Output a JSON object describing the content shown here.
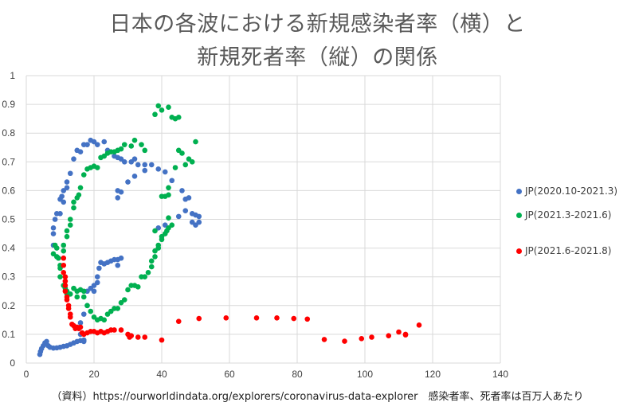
{
  "chart_data": {
    "type": "scatter",
    "title_lines": [
      "日本の各波における新規感染者率（横）と",
      "新規死者率（縦）の関係"
    ],
    "xlabel": "",
    "ylabel": "",
    "xlim": [
      0,
      140
    ],
    "ylim": [
      0,
      1
    ],
    "xticks": [
      "0",
      "20",
      "40",
      "60",
      "80",
      "100",
      "120",
      "140"
    ],
    "yticks": [
      "0",
      "0.1",
      "0.2",
      "0.3",
      "0.4",
      "0.5",
      "0.6",
      "0.7",
      "0.8",
      "0.9",
      "1"
    ],
    "grid": true,
    "legend_position": "right",
    "series": [
      {
        "name": "JP(2020.10-2021.3)",
        "color": "#4472C4",
        "points": [
          [
            4,
            0.03
          ],
          [
            4.2,
            0.04
          ],
          [
            4.5,
            0.05
          ],
          [
            5,
            0.06
          ],
          [
            5.5,
            0.07
          ],
          [
            6,
            0.075
          ],
          [
            6.5,
            0.06
          ],
          [
            7,
            0.055
          ],
          [
            8,
            0.052
          ],
          [
            9,
            0.053
          ],
          [
            10,
            0.055
          ],
          [
            11,
            0.058
          ],
          [
            12,
            0.06
          ],
          [
            13,
            0.065
          ],
          [
            14,
            0.07
          ],
          [
            15,
            0.075
          ],
          [
            16,
            0.078
          ],
          [
            17,
            0.08
          ],
          [
            17,
            0.075
          ],
          [
            16,
            0.1
          ],
          [
            16,
            0.14
          ],
          [
            17,
            0.17
          ],
          [
            18,
            0.2
          ],
          [
            18,
            0.25
          ],
          [
            19,
            0.26
          ],
          [
            20,
            0.25
          ],
          [
            20,
            0.27
          ],
          [
            21,
            0.28
          ],
          [
            21,
            0.3
          ],
          [
            21.5,
            0.33
          ],
          [
            22,
            0.35
          ],
          [
            23,
            0.345
          ],
          [
            24,
            0.35
          ],
          [
            25,
            0.355
          ],
          [
            26,
            0.36
          ],
          [
            27,
            0.36
          ],
          [
            28,
            0.365
          ],
          [
            27,
            0.34
          ],
          [
            8,
            0.41
          ],
          [
            8,
            0.45
          ],
          [
            8,
            0.47
          ],
          [
            8.5,
            0.5
          ],
          [
            9,
            0.52
          ],
          [
            10,
            0.52
          ],
          [
            10,
            0.57
          ],
          [
            10.5,
            0.58
          ],
          [
            11,
            0.56
          ],
          [
            11,
            0.6
          ],
          [
            12,
            0.61
          ],
          [
            12,
            0.63
          ],
          [
            13,
            0.66
          ],
          [
            14,
            0.71
          ],
          [
            15,
            0.74
          ],
          [
            16,
            0.735
          ],
          [
            17,
            0.76
          ],
          [
            18,
            0.76
          ],
          [
            19,
            0.775
          ],
          [
            20,
            0.77
          ],
          [
            21,
            0.76
          ],
          [
            23,
            0.77
          ],
          [
            24,
            0.74
          ],
          [
            26,
            0.72
          ],
          [
            27,
            0.715
          ],
          [
            28,
            0.71
          ],
          [
            29,
            0.7
          ],
          [
            31,
            0.7
          ],
          [
            32,
            0.71
          ],
          [
            33,
            0.69
          ],
          [
            35,
            0.67
          ],
          [
            35,
            0.69
          ],
          [
            37,
            0.69
          ],
          [
            39,
            0.675
          ],
          [
            41,
            0.665
          ],
          [
            43,
            0.635
          ],
          [
            46,
            0.6
          ],
          [
            47,
            0.57
          ],
          [
            48,
            0.575
          ],
          [
            49,
            0.52
          ],
          [
            50,
            0.515
          ],
          [
            51,
            0.51
          ],
          [
            50,
            0.48
          ],
          [
            51,
            0.49
          ],
          [
            49,
            0.49
          ],
          [
            47,
            0.53
          ],
          [
            45,
            0.51
          ],
          [
            41,
            0.48
          ],
          [
            39,
            0.47
          ],
          [
            27,
            0.575
          ],
          [
            27,
            0.6
          ],
          [
            28,
            0.595
          ],
          [
            30,
            0.63
          ],
          [
            32,
            0.65
          ]
        ]
      },
      {
        "name": "JP(2021.3-2021.6)",
        "color": "#00B050",
        "points": [
          [
            8,
            0.38
          ],
          [
            8.5,
            0.41
          ],
          [
            9,
            0.4
          ],
          [
            9,
            0.37
          ],
          [
            9.5,
            0.365
          ],
          [
            10,
            0.34
          ],
          [
            10,
            0.33
          ],
          [
            10,
            0.3
          ],
          [
            11,
            0.27
          ],
          [
            11.5,
            0.26
          ],
          [
            12,
            0.24
          ],
          [
            12,
            0.25
          ],
          [
            13,
            0.24
          ],
          [
            14,
            0.26
          ],
          [
            15,
            0.25
          ],
          [
            15,
            0.23
          ],
          [
            16,
            0.255
          ],
          [
            17,
            0.25
          ],
          [
            17,
            0.23
          ],
          [
            18,
            0.2
          ],
          [
            19,
            0.18
          ],
          [
            20,
            0.16
          ],
          [
            21,
            0.15
          ],
          [
            22,
            0.155
          ],
          [
            23,
            0.15
          ],
          [
            24,
            0.17
          ],
          [
            25,
            0.18
          ],
          [
            26,
            0.19
          ],
          [
            27,
            0.19
          ],
          [
            28,
            0.21
          ],
          [
            29,
            0.22
          ],
          [
            30,
            0.255
          ],
          [
            31,
            0.27
          ],
          [
            32,
            0.27
          ],
          [
            33,
            0.265
          ],
          [
            34,
            0.3
          ],
          [
            35,
            0.3
          ],
          [
            36,
            0.315
          ],
          [
            37,
            0.335
          ],
          [
            37,
            0.355
          ],
          [
            38,
            0.37
          ],
          [
            38,
            0.39
          ],
          [
            39,
            0.4
          ],
          [
            39,
            0.41
          ],
          [
            40,
            0.43
          ],
          [
            40,
            0.44
          ],
          [
            41,
            0.45
          ],
          [
            41.5,
            0.46
          ],
          [
            42,
            0.47
          ],
          [
            42,
            0.505
          ],
          [
            43,
            0.48
          ],
          [
            38,
            0.46
          ],
          [
            11,
            0.39
          ],
          [
            11,
            0.41
          ],
          [
            12,
            0.44
          ],
          [
            12,
            0.46
          ],
          [
            13,
            0.48
          ],
          [
            13,
            0.5
          ],
          [
            14,
            0.54
          ],
          [
            14,
            0.56
          ],
          [
            15,
            0.575
          ],
          [
            15.5,
            0.585
          ],
          [
            16,
            0.61
          ],
          [
            17,
            0.655
          ],
          [
            18,
            0.675
          ],
          [
            19,
            0.68
          ],
          [
            20,
            0.685
          ],
          [
            21,
            0.68
          ],
          [
            22,
            0.715
          ],
          [
            23,
            0.72
          ],
          [
            24,
            0.73
          ],
          [
            25,
            0.735
          ],
          [
            26,
            0.735
          ],
          [
            27,
            0.74
          ],
          [
            28,
            0.745
          ],
          [
            29,
            0.76
          ],
          [
            31,
            0.755
          ],
          [
            32,
            0.775
          ],
          [
            34,
            0.76
          ],
          [
            35,
            0.74
          ],
          [
            38,
            0.865
          ],
          [
            39,
            0.895
          ],
          [
            40,
            0.88
          ],
          [
            42,
            0.89
          ],
          [
            43,
            0.855
          ],
          [
            44,
            0.85
          ],
          [
            45,
            0.855
          ],
          [
            40,
            0.58
          ],
          [
            41,
            0.58
          ],
          [
            42,
            0.585
          ],
          [
            42,
            0.61
          ],
          [
            44,
            0.68
          ],
          [
            45,
            0.74
          ],
          [
            46,
            0.73
          ],
          [
            47,
            0.69
          ],
          [
            48,
            0.71
          ],
          [
            49,
            0.7
          ],
          [
            50,
            0.77
          ]
        ]
      },
      {
        "name": "JP(2021.6-2021.8)",
        "color": "#FF0000",
        "points": [
          [
            11,
            0.365
          ],
          [
            11,
            0.34
          ],
          [
            11,
            0.315
          ],
          [
            11.5,
            0.3
          ],
          [
            11.5,
            0.285
          ],
          [
            11.5,
            0.27
          ],
          [
            11.5,
            0.25
          ],
          [
            12,
            0.23
          ],
          [
            12,
            0.22
          ],
          [
            12.5,
            0.2
          ],
          [
            12.5,
            0.19
          ],
          [
            13,
            0.17
          ],
          [
            13,
            0.16
          ],
          [
            13.5,
            0.135
          ],
          [
            14,
            0.13
          ],
          [
            14.5,
            0.12
          ],
          [
            15,
            0.125
          ],
          [
            15.5,
            0.12
          ],
          [
            16,
            0.125
          ],
          [
            16.5,
            0.105
          ],
          [
            17,
            0.1
          ],
          [
            18,
            0.105
          ],
          [
            19,
            0.11
          ],
          [
            20,
            0.11
          ],
          [
            21,
            0.105
          ],
          [
            22,
            0.11
          ],
          [
            23,
            0.105
          ],
          [
            24,
            0.11
          ],
          [
            25,
            0.115
          ],
          [
            26,
            0.115
          ],
          [
            28,
            0.115
          ],
          [
            30,
            0.1
          ],
          [
            30.5,
            0.09
          ],
          [
            31,
            0.095
          ],
          [
            33,
            0.09
          ],
          [
            35,
            0.09
          ],
          [
            40,
            0.08
          ],
          [
            45,
            0.145
          ],
          [
            51,
            0.155
          ],
          [
            59,
            0.157
          ],
          [
            68,
            0.157
          ],
          [
            74,
            0.157
          ],
          [
            79,
            0.155
          ],
          [
            83,
            0.153
          ],
          [
            88,
            0.082
          ],
          [
            94,
            0.076
          ],
          [
            99,
            0.085
          ],
          [
            102,
            0.09
          ],
          [
            107,
            0.095
          ],
          [
            110,
            0.108
          ],
          [
            112,
            0.1
          ],
          [
            112,
            0.098
          ],
          [
            116,
            0.132
          ]
        ]
      }
    ]
  },
  "footer": "（資料）https://ourworldindata.org/explorers/coronavirus-data-explorer　感染者率、死者率は百万人あたり"
}
